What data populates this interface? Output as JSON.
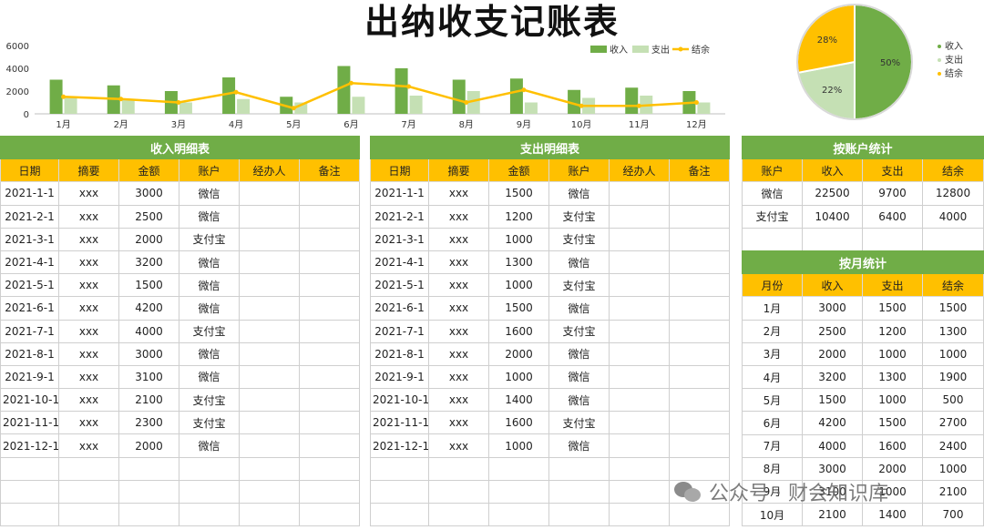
{
  "title": "出纳收支记账表",
  "colors": {
    "income": "#70ad47",
    "expense": "#c5e0b4",
    "balance": "#ffc000",
    "header": "#ffc000",
    "banner": "#70ad47"
  },
  "chart_data": [
    {
      "type": "bar",
      "categories": [
        "1月",
        "2月",
        "3月",
        "4月",
        "5月",
        "6月",
        "7月",
        "8月",
        "9月",
        "10月",
        "11月",
        "12月"
      ],
      "series": [
        {
          "name": "收入",
          "type": "bar",
          "values": [
            3000,
            2500,
            2000,
            3200,
            1500,
            4200,
            4000,
            3000,
            3100,
            2100,
            2300,
            2000
          ]
        },
        {
          "name": "支出",
          "type": "bar",
          "values": [
            1500,
            1200,
            1000,
            1300,
            1000,
            1500,
            1600,
            2000,
            1000,
            1400,
            1600,
            1000
          ]
        },
        {
          "name": "结余",
          "type": "line",
          "values": [
            1500,
            1300,
            1000,
            1900,
            500,
            2700,
            2400,
            1000,
            2100,
            700,
            700,
            1000
          ]
        }
      ],
      "yticks": [
        0,
        2000,
        4000,
        6000
      ],
      "ylim": [
        0,
        6000
      ],
      "legend": "top-right"
    },
    {
      "type": "pie",
      "labels": [
        "收入",
        "支出",
        "结余"
      ],
      "values": [
        50,
        22,
        28
      ],
      "value_labels": [
        "50%",
        "22%",
        "28%"
      ],
      "legend": "right"
    }
  ],
  "income": {
    "banner": "收入明细表",
    "headers": [
      "日期",
      "摘要",
      "金额",
      "账户",
      "经办人",
      "备注"
    ],
    "rows": [
      [
        "2021-1-1",
        "xxx",
        "3000",
        "微信",
        "",
        ""
      ],
      [
        "2021-2-1",
        "xxx",
        "2500",
        "微信",
        "",
        ""
      ],
      [
        "2021-3-1",
        "xxx",
        "2000",
        "支付宝",
        "",
        ""
      ],
      [
        "2021-4-1",
        "xxx",
        "3200",
        "微信",
        "",
        ""
      ],
      [
        "2021-5-1",
        "xxx",
        "1500",
        "微信",
        "",
        ""
      ],
      [
        "2021-6-1",
        "xxx",
        "4200",
        "微信",
        "",
        ""
      ],
      [
        "2021-7-1",
        "xxx",
        "4000",
        "支付宝",
        "",
        ""
      ],
      [
        "2021-8-1",
        "xxx",
        "3000",
        "微信",
        "",
        ""
      ],
      [
        "2021-9-1",
        "xxx",
        "3100",
        "微信",
        "",
        ""
      ],
      [
        "2021-10-1",
        "xxx",
        "2100",
        "支付宝",
        "",
        ""
      ],
      [
        "2021-11-1",
        "xxx",
        "2300",
        "支付宝",
        "",
        ""
      ],
      [
        "2021-12-1",
        "xxx",
        "2000",
        "微信",
        "",
        ""
      ]
    ]
  },
  "expense": {
    "banner": "支出明细表",
    "headers": [
      "日期",
      "摘要",
      "金额",
      "账户",
      "经办人",
      "备注"
    ],
    "rows": [
      [
        "2021-1-1",
        "xxx",
        "1500",
        "微信",
        "",
        ""
      ],
      [
        "2021-2-1",
        "xxx",
        "1200",
        "支付宝",
        "",
        ""
      ],
      [
        "2021-3-1",
        "xxx",
        "1000",
        "支付宝",
        "",
        ""
      ],
      [
        "2021-4-1",
        "xxx",
        "1300",
        "微信",
        "",
        ""
      ],
      [
        "2021-5-1",
        "xxx",
        "1000",
        "支付宝",
        "",
        ""
      ],
      [
        "2021-6-1",
        "xxx",
        "1500",
        "微信",
        "",
        ""
      ],
      [
        "2021-7-1",
        "xxx",
        "1600",
        "支付宝",
        "",
        ""
      ],
      [
        "2021-8-1",
        "xxx",
        "2000",
        "微信",
        "",
        ""
      ],
      [
        "2021-9-1",
        "xxx",
        "1000",
        "微信",
        "",
        ""
      ],
      [
        "2021-10-1",
        "xxx",
        "1400",
        "微信",
        "",
        ""
      ],
      [
        "2021-11-1",
        "xxx",
        "1600",
        "支付宝",
        "",
        ""
      ],
      [
        "2021-12-1",
        "xxx",
        "1000",
        "微信",
        "",
        ""
      ]
    ]
  },
  "by_account": {
    "banner": "按账户统计",
    "headers": [
      "账户",
      "收入",
      "支出",
      "结余"
    ],
    "rows": [
      [
        "微信",
        "22500",
        "9700",
        "12800"
      ],
      [
        "支付宝",
        "10400",
        "6400",
        "4000"
      ]
    ]
  },
  "by_month": {
    "banner": "按月统计",
    "headers": [
      "月份",
      "收入",
      "支出",
      "结余"
    ],
    "rows": [
      [
        "1月",
        "3000",
        "1500",
        "1500"
      ],
      [
        "2月",
        "2500",
        "1200",
        "1300"
      ],
      [
        "3月",
        "2000",
        "1000",
        "1000"
      ],
      [
        "4月",
        "3200",
        "1300",
        "1900"
      ],
      [
        "5月",
        "1500",
        "1000",
        "500"
      ],
      [
        "6月",
        "4200",
        "1500",
        "2700"
      ],
      [
        "7月",
        "4000",
        "1600",
        "2400"
      ],
      [
        "8月",
        "3000",
        "2000",
        "1000"
      ],
      [
        "9月",
        "3100",
        "1000",
        "2100"
      ],
      [
        "10月",
        "2100",
        "1400",
        "700"
      ]
    ]
  },
  "watermark": {
    "text": "公众号 · 财会知识库",
    "icon": "wechat-icon"
  }
}
